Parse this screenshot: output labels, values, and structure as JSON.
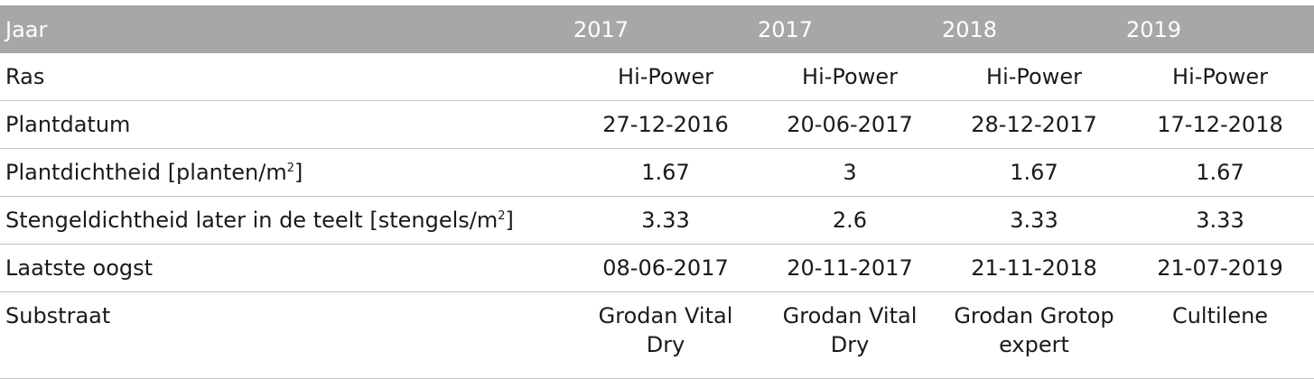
{
  "table": {
    "header": {
      "label": "Jaar",
      "years": [
        "2017",
        "2017",
        "2018",
        "2019"
      ]
    },
    "rows": [
      {
        "label": "Ras",
        "label_sup": "",
        "label_suffix": "",
        "values": [
          "Hi-Power",
          "Hi-Power",
          "Hi-Power",
          "Hi-Power"
        ]
      },
      {
        "label": "Plantdatum",
        "label_sup": "",
        "label_suffix": "",
        "values": [
          "27-12-2016",
          "20-06-2017",
          "28-12-2017",
          "17-12-2018"
        ]
      },
      {
        "label": "Plantdichtheid [planten/m",
        "label_sup": "2",
        "label_suffix": "]",
        "values": [
          "1.67",
          "3",
          "1.67",
          "1.67"
        ]
      },
      {
        "label": "Stengeldichtheid later in de teelt [stengels/m",
        "label_sup": "2",
        "label_suffix": "]",
        "values": [
          "3.33",
          "2.6",
          "3.33",
          "3.33"
        ]
      },
      {
        "label": "Laatste oogst",
        "label_sup": "",
        "label_suffix": "",
        "values": [
          "08-06-2017",
          "20-11-2017",
          "21-11-2018",
          "21-07-2019"
        ]
      },
      {
        "label": "Substraat",
        "label_sup": "",
        "label_suffix": "",
        "values_lines": [
          [
            "Grodan Vital",
            "Dry"
          ],
          [
            "Grodan Vital",
            "Dry"
          ],
          [
            "Grodan Grotop",
            "expert"
          ],
          [
            "Cultilene",
            ""
          ]
        ]
      }
    ]
  },
  "colors": {
    "header_bg": "#a7a7a7",
    "header_text": "#ffffff",
    "divider": "#c4c4c4",
    "text": "#1a1a1a"
  }
}
